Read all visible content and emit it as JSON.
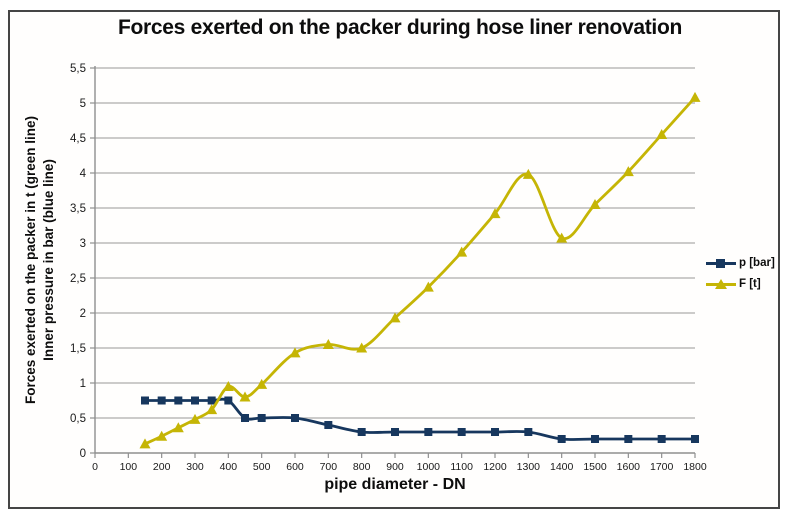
{
  "chart_data": {
    "type": "line",
    "title": "Forces exerted on the packer during hose liner renovation",
    "xlabel": "pipe diameter - DN",
    "ylabel_lines": [
      "Forces exerted on the packer in t (green line)",
      "Inner pressure in bar (blue line)"
    ],
    "xlim": [
      0,
      1800
    ],
    "ylim": [
      0,
      5.5
    ],
    "grid": true,
    "legend_position": "right",
    "x_ticks": {
      "values": [
        0,
        100,
        200,
        300,
        400,
        500,
        600,
        700,
        800,
        900,
        1000,
        1100,
        1200,
        1300,
        1400,
        1500,
        1600,
        1700,
        1800
      ],
      "labels": [
        "0",
        "100",
        "200",
        "300",
        "400",
        "500",
        "600",
        "700",
        "800",
        "900",
        "1000",
        "1100",
        "1200",
        "1300",
        "1400",
        "1500",
        "1600",
        "1700",
        "1800"
      ]
    },
    "y_ticks": {
      "values": [
        0,
        0.5,
        1,
        1.5,
        2,
        2.5,
        3,
        3.5,
        4,
        4.5,
        5,
        5.5
      ],
      "labels": [
        "0",
        "0,5",
        "1",
        "1,5",
        "2",
        "2,5",
        "3",
        "3,5",
        "4",
        "4,5",
        "5",
        "5,5"
      ]
    },
    "x": [
      150,
      200,
      250,
      300,
      350,
      400,
      450,
      500,
      600,
      700,
      800,
      900,
      1000,
      1100,
      1200,
      1300,
      1400,
      1500,
      1600,
      1700,
      1800
    ],
    "series": [
      {
        "name": "p [bar]",
        "color": "#17375E",
        "marker": "square",
        "values": [
          0.75,
          0.75,
          0.75,
          0.75,
          0.75,
          0.75,
          0.5,
          0.5,
          0.5,
          0.4,
          0.3,
          0.3,
          0.3,
          0.3,
          0.3,
          0.3,
          0.2,
          0.2,
          0.2,
          0.2,
          0.2
        ]
      },
      {
        "name": "F [t]",
        "color": "#C5B505",
        "marker": "triangle",
        "values": [
          0.13,
          0.24,
          0.36,
          0.48,
          0.62,
          0.95,
          0.8,
          0.98,
          1.43,
          1.55,
          1.5,
          1.93,
          2.37,
          2.87,
          3.42,
          3.98,
          3.07,
          3.55,
          4.02,
          4.55,
          5.08
        ]
      }
    ],
    "colors": {
      "gridline": "#adadad",
      "axis": "#8f8f8f",
      "tick_text": "#1a1a1a"
    }
  }
}
